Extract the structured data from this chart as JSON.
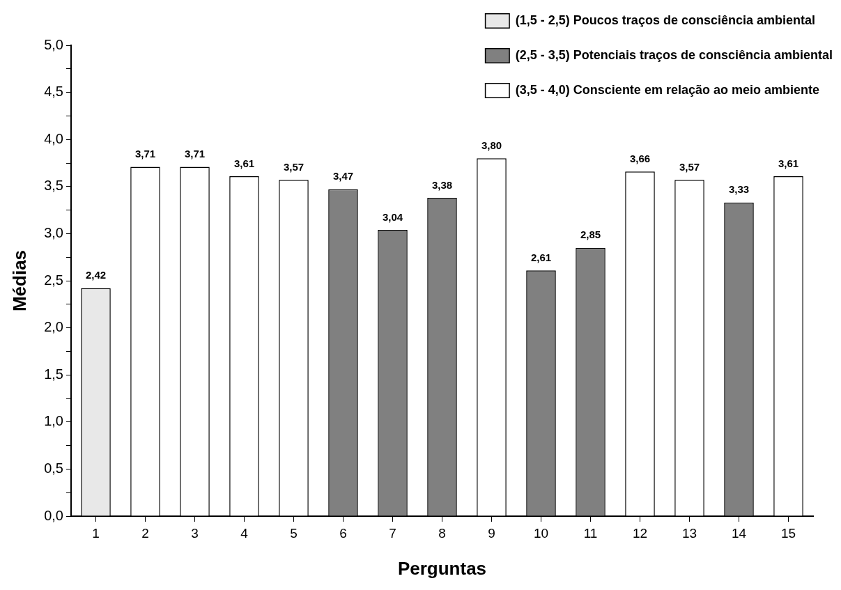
{
  "chart_data": {
    "type": "bar",
    "xlabel": "Perguntas",
    "ylabel": "Médias",
    "x": [
      1,
      2,
      3,
      4,
      5,
      6,
      7,
      8,
      9,
      10,
      11,
      12,
      13,
      14,
      15
    ],
    "xlim": [
      0.5,
      15.5
    ],
    "xticks": [
      1,
      2,
      3,
      4,
      5,
      6,
      7,
      8,
      9,
      10,
      11,
      12,
      13,
      14,
      15
    ],
    "series": [
      {
        "name": "(1,5 - 2,5) Poucos traços de consciência ambiental",
        "color": "#e8e8e8",
        "values": [
          2.42,
          null,
          null,
          null,
          null,
          null,
          null,
          null,
          null,
          null,
          null,
          null,
          null,
          null,
          null
        ],
        "value_labels": [
          "2,42",
          null,
          null,
          null,
          null,
          null,
          null,
          null,
          null,
          null,
          null,
          null,
          null,
          null,
          null
        ]
      },
      {
        "name": "(2,5 - 3,5) Potenciais traços de consciência ambiental",
        "color": "#808080",
        "values": [
          null,
          null,
          null,
          null,
          null,
          3.47,
          3.04,
          3.38,
          null,
          2.61,
          2.85,
          null,
          null,
          3.33,
          null
        ],
        "value_labels": [
          null,
          null,
          null,
          null,
          null,
          "3,47",
          "3,04",
          "3,38",
          null,
          "2,61",
          "2,85",
          null,
          null,
          "3,33",
          null
        ]
      },
      {
        "name": "(3,5 - 4,0) Consciente em relação ao meio ambiente",
        "color": "#ffffff",
        "values": [
          null,
          3.71,
          3.71,
          3.61,
          3.57,
          null,
          null,
          null,
          3.8,
          null,
          null,
          3.66,
          3.57,
          null,
          3.61
        ],
        "value_labels": [
          null,
          "3,71",
          "3,71",
          "3,61",
          "3,57",
          null,
          null,
          null,
          "3,80",
          null,
          null,
          "3,66",
          "3,57",
          null,
          "3,61"
        ]
      }
    ],
    "ylim": [
      0,
      5
    ],
    "yticks": [
      {
        "value": 0,
        "label": "0,0"
      },
      {
        "value": 0.25,
        "label": null
      },
      {
        "value": 0.5,
        "label": "0,5"
      },
      {
        "value": 0.75,
        "label": null
      },
      {
        "value": 1,
        "label": "1,0"
      },
      {
        "value": 1.25,
        "label": null
      },
      {
        "value": 1.5,
        "label": "1,5"
      },
      {
        "value": 1.75,
        "label": null
      },
      {
        "value": 2,
        "label": "2,0"
      },
      {
        "value": 2.25,
        "label": null
      },
      {
        "value": 2.5,
        "label": "2,5"
      },
      {
        "value": 2.75,
        "label": null
      },
      {
        "value": 3,
        "label": "3,0"
      },
      {
        "value": 3.25,
        "label": null
      },
      {
        "value": 3.5,
        "label": "3,5"
      },
      {
        "value": 3.75,
        "label": null
      },
      {
        "value": 4,
        "label": "4,0"
      },
      {
        "value": 4.25,
        "label": null
      },
      {
        "value": 4.5,
        "label": "4,5"
      },
      {
        "value": 4.75,
        "label": null
      },
      {
        "value": 5,
        "label": "5,0"
      }
    ],
    "legend": "top right"
  }
}
